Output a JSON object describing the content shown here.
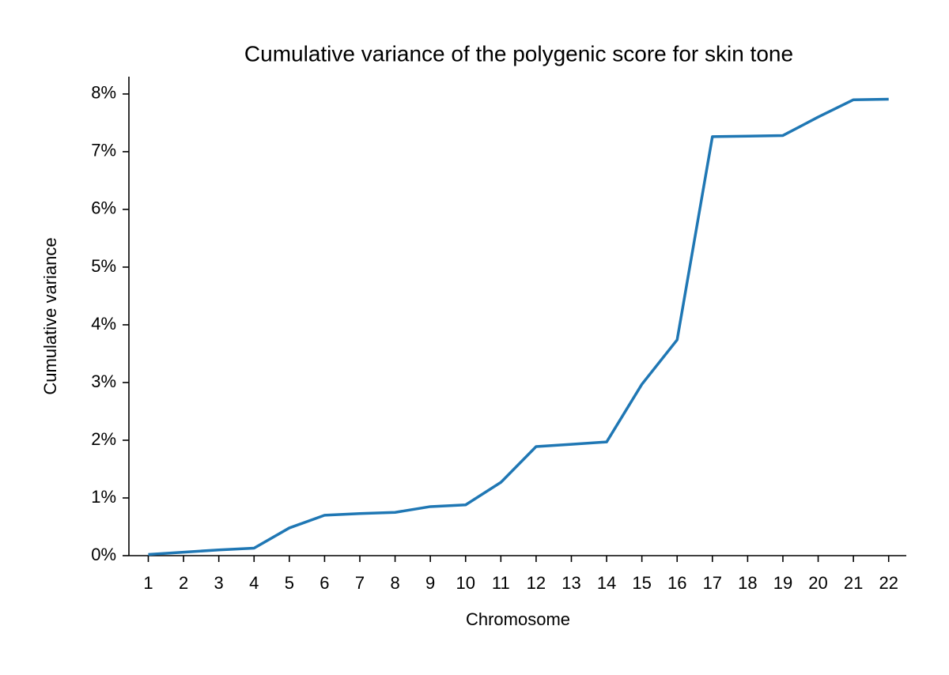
{
  "chart_data": {
    "type": "line",
    "title": "Cumulative variance of the polygenic score for skin tone",
    "x_label": "Chromosome",
    "y_label": "Cumulative variance",
    "x": [
      1,
      2,
      3,
      4,
      5,
      6,
      7,
      8,
      9,
      10,
      11,
      12,
      13,
      14,
      15,
      16,
      17,
      18,
      19,
      20,
      21,
      22
    ],
    "values": [
      0.02,
      0.06,
      0.1,
      0.13,
      0.48,
      0.7,
      0.73,
      0.75,
      0.85,
      0.88,
      1.27,
      1.89,
      1.93,
      1.97,
      2.97,
      3.74,
      7.26,
      7.27,
      7.28,
      7.6,
      7.9,
      7.91
    ],
    "color": "#1f77b4",
    "xlim": [
      0.45,
      22.5
    ],
    "xticks": [
      1,
      2,
      3,
      4,
      5,
      6,
      7,
      8,
      9,
      10,
      11,
      12,
      13,
      14,
      15,
      16,
      17,
      18,
      19,
      20,
      21,
      22
    ],
    "ylim": [
      0,
      8.3
    ],
    "yticks": [
      {
        "value": 0,
        "label": "0%"
      },
      {
        "value": 1,
        "label": "1%"
      },
      {
        "value": 2,
        "label": "2%"
      },
      {
        "value": 3,
        "label": "3%"
      },
      {
        "value": 4,
        "label": "4%"
      },
      {
        "value": 5,
        "label": "5%"
      },
      {
        "value": 6,
        "label": "6%"
      },
      {
        "value": 7,
        "label": "7%"
      },
      {
        "value": 8,
        "label": "8%"
      }
    ],
    "grid": false
  }
}
